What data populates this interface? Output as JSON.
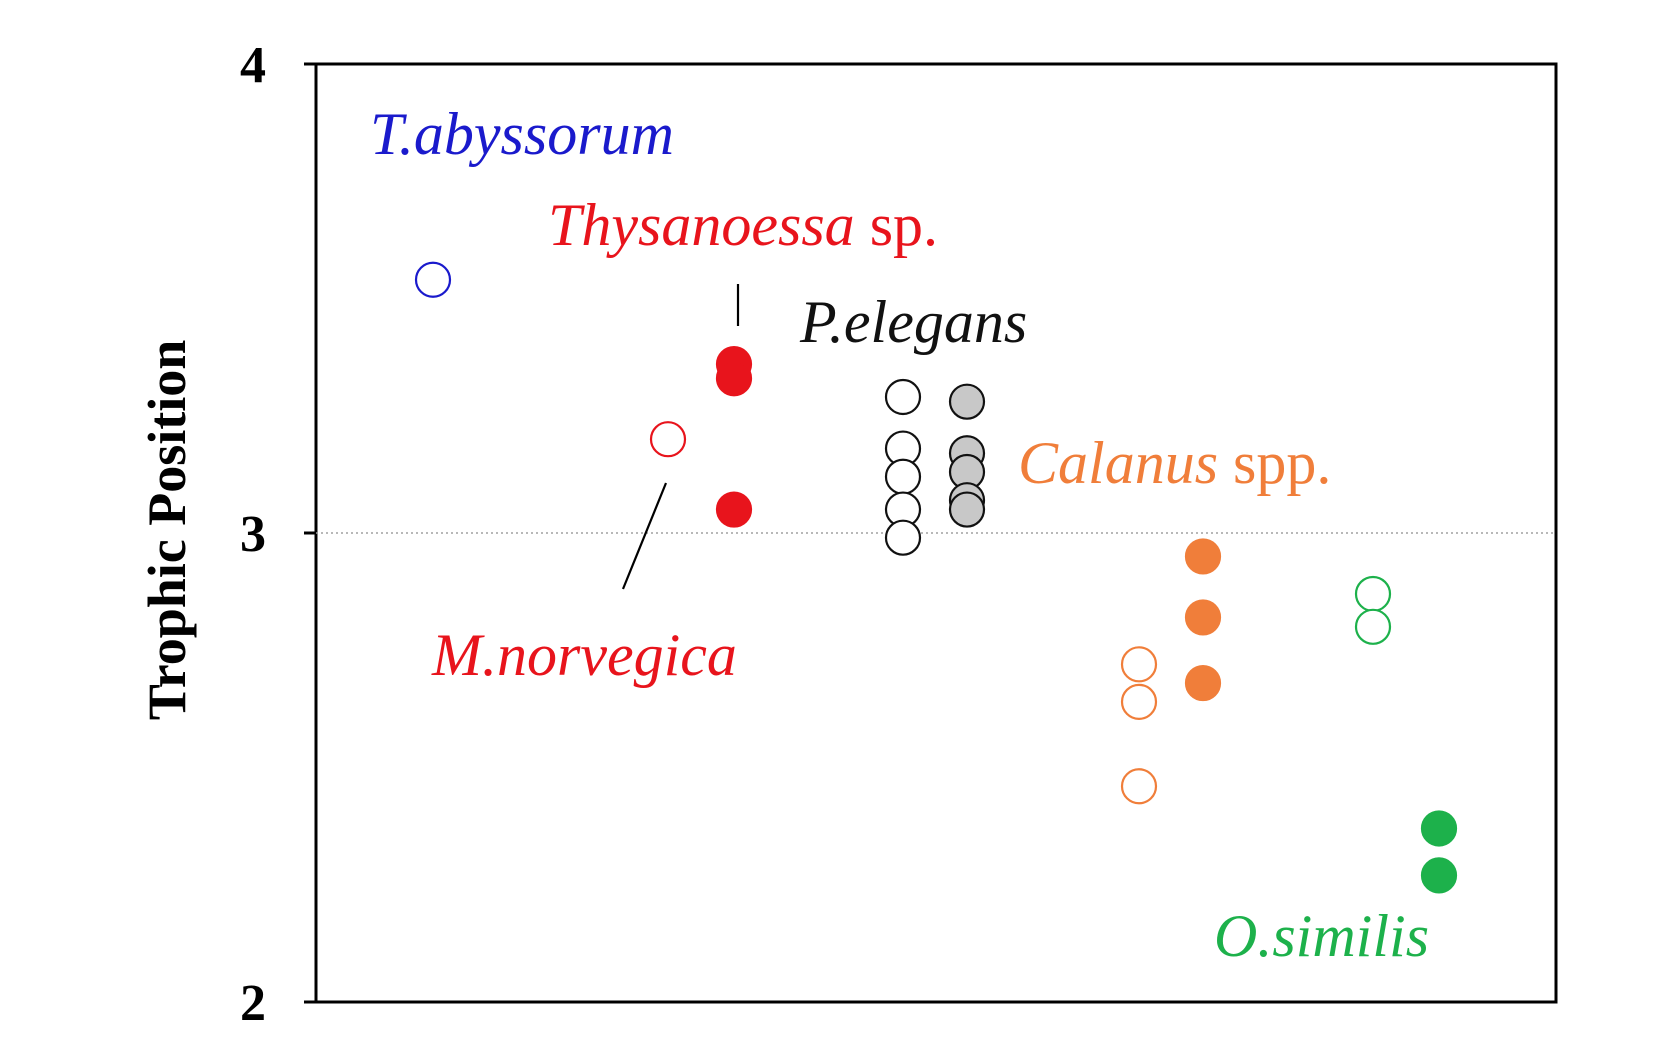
{
  "chart_data": {
    "type": "scatter",
    "ylabel": "Trophic Position",
    "ylim": [
      2,
      4
    ],
    "yticks": [
      "2",
      "3",
      "4"
    ],
    "reference_line": 3,
    "grid": false,
    "series": [
      {
        "name": "T.abyssorum",
        "suffix": "",
        "color": "#1a1acc",
        "x": 1,
        "filled": false,
        "values": [
          3.54
        ]
      },
      {
        "name": "M.norvegica",
        "suffix": "",
        "color": "#e8141c",
        "x": 2,
        "filled": false,
        "values": [
          3.2
        ]
      },
      {
        "name": "Thysanoessa",
        "suffix": " sp.",
        "color": "#e8141c",
        "x": 3,
        "filled": true,
        "values": [
          3.36,
          3.33,
          3.05
        ]
      },
      {
        "name": "P.elegans",
        "suffix": "",
        "color": "#111111",
        "fill": "#ffffff",
        "x": 4,
        "filled": false,
        "values": [
          3.29,
          3.18,
          3.12,
          3.05,
          2.99
        ]
      },
      {
        "name": "P.elegans",
        "suffix": "",
        "color": "#111111",
        "fill": "#c8c8c8",
        "x": 5,
        "filled": true,
        "values": [
          3.28,
          3.17,
          3.13,
          3.07,
          3.05
        ]
      },
      {
        "name": "Calanus",
        "suffix": " spp.",
        "color": "#f07e3a",
        "x": 6,
        "filled": false,
        "values": [
          2.72,
          2.64,
          2.46
        ]
      },
      {
        "name": "Calanus",
        "suffix": " spp.",
        "color": "#f07e3a",
        "x": 7,
        "filled": true,
        "values": [
          2.95,
          2.82,
          2.68
        ]
      },
      {
        "name": "O.similis",
        "suffix": "",
        "color": "#1db14b",
        "x": 8,
        "filled": false,
        "values": [
          2.87,
          2.8
        ]
      },
      {
        "name": "O.similis",
        "suffix": "",
        "color": "#1db14b",
        "x": 9,
        "filled": true,
        "values": [
          2.37,
          2.27
        ]
      }
    ],
    "annotations": [
      {
        "text": "T.abyssorum",
        "suffix": "",
        "color": "#1a1acc"
      },
      {
        "text": "Thysanoessa",
        "suffix": " sp.",
        "color": "#e8141c"
      },
      {
        "text": "P.elegans",
        "suffix": "",
        "color": "#111111"
      },
      {
        "text": "Calanus",
        "suffix": " spp.",
        "color": "#f07e3a"
      },
      {
        "text": "M.norvegica",
        "suffix": "",
        "color": "#e8141c"
      },
      {
        "text": "O.similis",
        "suffix": "",
        "color": "#1db14b"
      }
    ]
  }
}
